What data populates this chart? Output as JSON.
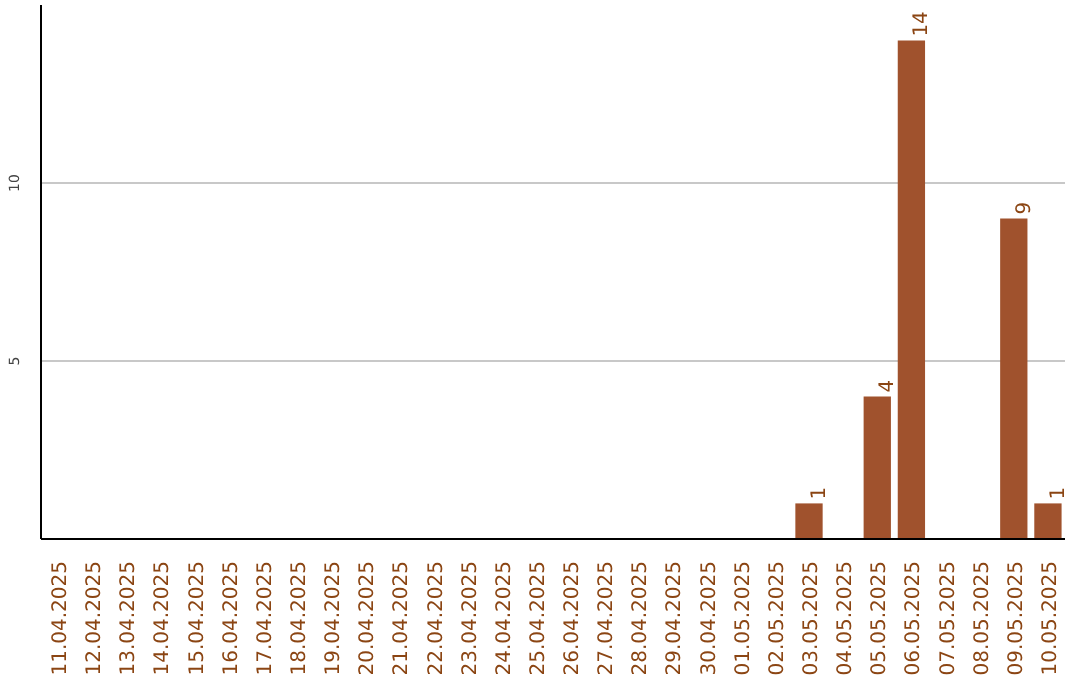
{
  "chart_data": {
    "type": "bar",
    "categories": [
      "11.04.2025",
      "12.04.2025",
      "13.04.2025",
      "14.04.2025",
      "15.04.2025",
      "16.04.2025",
      "17.04.2025",
      "18.04.2025",
      "19.04.2025",
      "20.04.2025",
      "21.04.2025",
      "22.04.2025",
      "23.04.2025",
      "24.04.2025",
      "25.04.2025",
      "26.04.2025",
      "27.04.2025",
      "28.04.2025",
      "29.04.2025",
      "30.04.2025",
      "01.05.2025",
      "02.05.2025",
      "03.05.2025",
      "04.05.2025",
      "05.05.2025",
      "06.05.2025",
      "07.05.2025",
      "08.05.2025",
      "09.05.2025",
      "10.05.2025"
    ],
    "values": [
      0,
      0,
      0,
      0,
      0,
      0,
      0,
      0,
      0,
      0,
      0,
      0,
      0,
      0,
      0,
      0,
      0,
      0,
      0,
      0,
      0,
      0,
      1,
      0,
      4,
      14,
      0,
      0,
      9,
      1
    ],
    "value_labels": [
      null,
      null,
      null,
      null,
      null,
      null,
      null,
      null,
      null,
      null,
      null,
      null,
      null,
      null,
      null,
      null,
      null,
      null,
      null,
      null,
      null,
      null,
      "1",
      null,
      "4",
      "14",
      null,
      null,
      "9",
      "1"
    ],
    "color": "#a0522d",
    "ylim": [
      0,
      15
    ],
    "yticks": [
      5,
      10
    ],
    "grid": "y"
  }
}
